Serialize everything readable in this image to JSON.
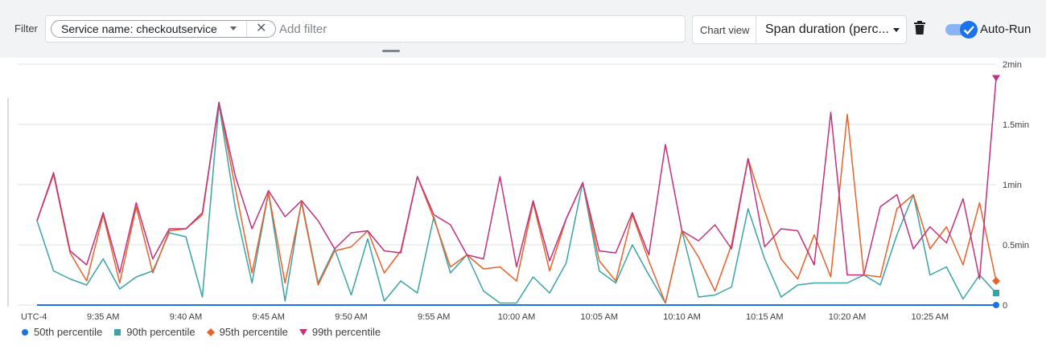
{
  "toolbar": {
    "filter_label": "Filter",
    "chip_text": "Service name: checkoutservice",
    "add_filter_placeholder": "Add filter",
    "chart_view_label": "Chart view",
    "chart_view_value": "Span duration (perc...",
    "auto_run_label": "Auto-Run",
    "auto_run_on": true
  },
  "colors": {
    "p50": "#1a73e8",
    "p90": "#3ba3a8",
    "p95": "#e8622c",
    "p99": "#c2307e"
  },
  "chart_data": {
    "type": "line",
    "x_label": "UTC-4",
    "x_ticks": [
      "9:35 AM",
      "9:40 AM",
      "9:45 AM",
      "9:50 AM",
      "9:55 AM",
      "10:00 AM",
      "10:05 AM",
      "10:10 AM",
      "10:15 AM",
      "10:20 AM",
      "10:25 AM"
    ],
    "x_tick_positions": [
      4,
      9,
      14,
      19,
      24,
      29,
      34,
      39,
      44,
      49,
      54
    ],
    "y_ticks": [
      "0",
      "0.5min",
      "1min",
      "1.5min",
      "2min"
    ],
    "y_tick_values": [
      0,
      30,
      60,
      90,
      120
    ],
    "ylim": [
      0,
      120
    ],
    "y_unit": "seconds",
    "x": [
      0,
      1,
      2,
      3,
      4,
      5,
      6,
      7,
      8,
      9,
      10,
      11,
      12,
      13,
      14,
      15,
      16,
      17,
      18,
      19,
      20,
      21,
      22,
      23,
      24,
      25,
      26,
      27,
      28,
      29,
      30,
      31,
      32,
      33,
      34,
      35,
      36,
      37,
      38,
      39,
      40,
      41,
      42,
      43,
      44,
      45,
      46,
      47,
      48,
      49,
      50,
      51,
      52,
      53,
      54,
      55,
      56,
      57,
      58
    ],
    "series": [
      {
        "name": "50th percentile",
        "marker": "circle",
        "values": [
          0,
          0,
          0,
          0,
          0,
          0,
          0,
          0,
          0,
          0,
          0,
          0,
          0,
          0,
          0,
          0,
          0,
          0,
          0,
          0,
          0,
          0,
          0,
          0,
          0,
          0,
          0,
          0,
          0,
          0,
          0,
          0,
          0,
          0,
          0,
          0,
          0,
          0,
          0,
          0,
          0,
          0,
          0,
          0,
          0,
          0,
          0,
          0,
          0,
          0,
          0,
          0,
          0,
          0,
          0,
          0,
          0,
          0,
          0
        ]
      },
      {
        "name": "90th percentile",
        "marker": "square",
        "values": [
          42,
          17,
          13,
          10,
          23,
          8,
          14,
          17,
          36,
          34,
          4,
          100,
          48,
          11,
          56,
          2,
          52,
          11,
          28,
          5,
          33,
          2,
          12,
          6,
          44,
          16,
          25,
          7,
          1,
          1,
          14,
          6,
          21,
          61,
          17,
          11,
          30,
          15,
          1,
          37,
          4,
          5,
          9,
          48,
          23,
          4,
          10,
          11,
          11,
          11,
          15,
          10,
          35,
          55,
          15,
          19,
          3,
          15,
          6
        ]
      },
      {
        "name": "95th percentile",
        "marker": "diamond",
        "values": [
          42,
          65,
          26,
          12,
          45,
          11,
          49,
          16,
          37,
          38,
          45,
          101,
          58,
          16,
          56,
          11,
          51,
          10,
          27,
          29,
          37,
          16,
          27,
          64,
          43,
          19,
          25,
          18,
          19,
          12,
          51,
          17,
          43,
          61,
          22,
          12,
          45,
          22,
          1,
          37,
          24,
          7,
          30,
          73,
          47,
          23,
          13,
          35,
          14,
          95,
          15,
          14,
          48,
          55,
          28,
          39,
          20,
          51,
          12
        ]
      },
      {
        "name": "99th percentile",
        "marker": "triangle",
        "values": [
          42,
          66,
          27,
          20,
          46,
          16,
          51,
          23,
          38,
          38,
          46,
          101,
          64,
          38,
          57,
          44,
          52,
          42,
          28,
          36,
          37,
          27,
          26,
          64,
          45,
          40,
          25,
          23,
          64,
          19,
          52,
          22,
          43,
          61,
          27,
          26,
          46,
          25,
          80,
          37,
          32,
          40,
          28,
          73,
          29,
          38,
          37,
          20,
          96,
          15,
          15,
          49,
          55,
          28,
          39,
          31,
          53,
          13,
          113
        ]
      }
    ]
  }
}
